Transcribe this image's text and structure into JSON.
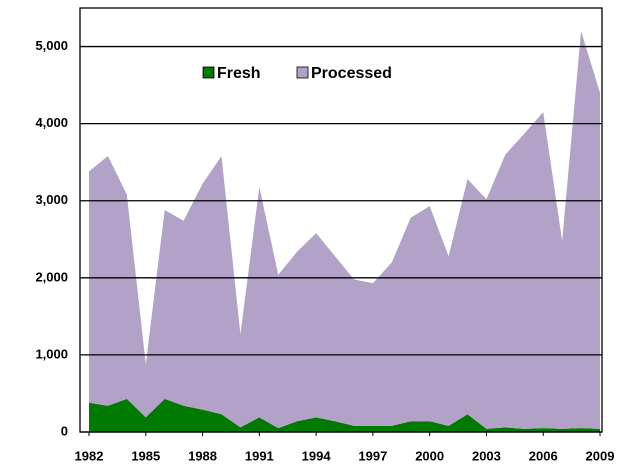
{
  "chart_data": {
    "type": "stacked_area",
    "x": [
      1982,
      1983,
      1984,
      1985,
      1986,
      1987,
      1988,
      1989,
      1990,
      1991,
      1992,
      1993,
      1994,
      1995,
      1996,
      1997,
      1998,
      1999,
      2000,
      2001,
      2002,
      2003,
      2004,
      2005,
      2006,
      2007,
      2008,
      2009
    ],
    "series": [
      {
        "name": "Fresh",
        "color": "#007a00",
        "values": [
          380,
          340,
          430,
          190,
          430,
          340,
          290,
          230,
          60,
          190,
          50,
          140,
          190,
          140,
          80,
          80,
          80,
          140,
          140,
          80,
          230,
          40,
          60,
          40,
          50,
          40,
          50,
          40
        ]
      },
      {
        "name": "Processed",
        "color": "#b3a2c7",
        "values": [
          3000,
          3240,
          2650,
          690,
          2450,
          2400,
          2930,
          3350,
          1210,
          2990,
          1990,
          2200,
          2390,
          2140,
          1900,
          1850,
          2120,
          2640,
          2790,
          2200,
          3050,
          2980,
          3540,
          3830,
          4100,
          2440,
          5150,
          4360
        ]
      }
    ],
    "xlim": [
      1982,
      2009
    ],
    "xticks": [
      1982,
      1985,
      1988,
      1991,
      1994,
      1997,
      2000,
      2003,
      2006,
      2009
    ],
    "ylim": [
      0,
      5500
    ],
    "yticks": [
      0,
      {
        "value": 1000,
        "label": "1,000"
      },
      {
        "value": 2000,
        "label": "2,000"
      },
      {
        "value": 3000,
        "label": "3,000"
      },
      {
        "value": 4000,
        "label": "4,000"
      },
      {
        "value": 5000,
        "label": "5,000"
      }
    ],
    "grid": true,
    "legend": "top"
  }
}
